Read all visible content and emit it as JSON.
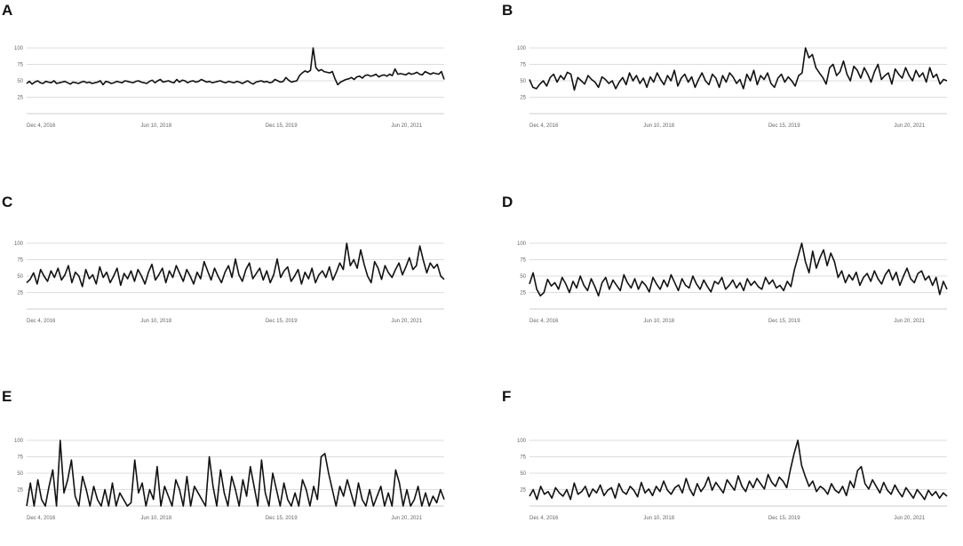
{
  "chart_data": [
    {
      "panel": "A",
      "type": "line",
      "x_ticks": [
        "Dec 4, 2016",
        "Jun 10, 2018",
        "Dec 15, 2019",
        "Jun 20, 2021"
      ],
      "y_ticks": [
        25,
        50,
        75,
        100
      ],
      "ylim": [
        0,
        100
      ],
      "values": [
        46,
        49,
        45,
        48,
        50,
        47,
        46,
        49,
        48,
        47,
        50,
        46,
        47,
        48,
        49,
        47,
        45,
        48,
        47,
        46,
        48,
        49,
        47,
        48,
        46,
        47,
        48,
        50,
        44,
        49,
        48,
        46,
        47,
        49,
        48,
        47,
        50,
        49,
        48,
        47,
        49,
        50,
        48,
        47,
        46,
        49,
        51,
        47,
        50,
        52,
        48,
        49,
        50,
        48,
        47,
        52,
        48,
        51,
        50,
        47,
        49,
        50,
        48,
        49,
        52,
        50,
        48,
        49,
        47,
        48,
        49,
        50,
        48,
        47,
        49,
        48,
        47,
        49,
        48,
        46,
        48,
        50,
        47,
        45,
        48,
        49,
        50,
        48,
        49,
        47,
        48,
        52,
        50,
        48,
        49,
        55,
        51,
        48,
        49,
        50,
        58,
        62,
        65,
        63,
        66,
        100,
        70,
        65,
        67,
        64,
        63,
        62,
        64,
        53,
        44,
        48,
        50,
        52,
        53,
        55,
        52,
        56,
        57,
        54,
        58,
        59,
        57,
        58,
        60,
        56,
        58,
        59,
        57,
        60,
        58,
        68,
        60,
        61,
        60,
        59,
        62,
        60,
        61,
        63,
        60,
        59,
        64,
        62,
        60,
        62,
        61,
        60,
        64,
        52
      ]
    },
    {
      "panel": "B",
      "type": "line",
      "x_ticks": [
        "Dec 4, 2016",
        "Jun 10, 2018",
        "Dec 15, 2019",
        "Jun 20, 2021"
      ],
      "y_ticks": [
        25,
        50,
        75,
        100
      ],
      "ylim": [
        0,
        100
      ],
      "values": [
        52,
        40,
        38,
        45,
        50,
        42,
        55,
        60,
        48,
        58,
        52,
        63,
        60,
        36,
        55,
        50,
        45,
        58,
        52,
        48,
        40,
        56,
        52,
        46,
        50,
        38,
        48,
        55,
        44,
        62,
        50,
        58,
        46,
        54,
        40,
        56,
        48,
        62,
        52,
        44,
        58,
        50,
        66,
        42,
        54,
        60,
        48,
        56,
        40,
        52,
        62,
        50,
        44,
        60,
        54,
        40,
        58,
        48,
        62,
        56,
        46,
        52,
        38,
        60,
        50,
        66,
        44,
        58,
        52,
        62,
        46,
        40,
        54,
        60,
        48,
        56,
        50,
        42,
        58,
        62,
        100,
        85,
        90,
        70,
        62,
        55,
        45,
        70,
        75,
        58,
        64,
        80,
        60,
        50,
        72,
        66,
        54,
        70,
        60,
        48,
        64,
        75,
        52,
        58,
        62,
        45,
        68,
        60,
        54,
        70,
        58,
        50,
        66,
        56,
        62,
        48,
        70,
        55,
        60,
        45,
        52,
        50
      ]
    },
    {
      "panel": "C",
      "type": "line",
      "x_ticks": [
        "Dec 4, 2016",
        "Jun 10, 2018",
        "Dec 15, 2019",
        "Jun 20, 2021"
      ],
      "y_ticks": [
        25,
        50,
        75,
        100
      ],
      "ylim": [
        0,
        100
      ],
      "values": [
        40,
        45,
        55,
        38,
        60,
        50,
        42,
        58,
        48,
        62,
        44,
        52,
        66,
        40,
        56,
        50,
        34,
        60,
        46,
        52,
        38,
        64,
        48,
        56,
        40,
        50,
        62,
        36,
        54,
        46,
        58,
        42,
        60,
        50,
        38,
        56,
        68,
        44,
        52,
        62,
        40,
        58,
        48,
        66,
        54,
        42,
        60,
        50,
        38,
        56,
        46,
        72,
        58,
        44,
        62,
        50,
        40,
        56,
        66,
        48,
        76,
        52,
        42,
        60,
        70,
        46,
        54,
        62,
        44,
        58,
        40,
        52,
        76,
        48,
        58,
        64,
        42,
        50,
        60,
        38,
        56,
        46,
        62,
        40,
        52,
        58,
        48,
        64,
        44,
        56,
        70,
        60,
        100,
        66,
        75,
        62,
        90,
        68,
        50,
        40,
        72,
        62,
        45,
        66,
        55,
        48,
        60,
        70,
        52,
        64,
        78,
        60,
        66,
        96,
        74,
        55,
        70,
        62,
        68,
        50,
        45
      ]
    },
    {
      "panel": "D",
      "type": "line",
      "x_ticks": [
        "Dec 4, 2016",
        "Jun 10, 2018",
        "Dec 15, 2019",
        "Jun 20, 2021"
      ],
      "y_ticks": [
        25,
        50,
        75,
        100
      ],
      "ylim": [
        0,
        100
      ],
      "values": [
        38,
        55,
        30,
        20,
        25,
        45,
        35,
        40,
        30,
        48,
        38,
        25,
        42,
        32,
        50,
        36,
        28,
        46,
        34,
        20,
        40,
        48,
        30,
        44,
        36,
        28,
        52,
        40,
        32,
        46,
        30,
        42,
        36,
        26,
        48,
        38,
        30,
        44,
        34,
        52,
        40,
        28,
        46,
        36,
        32,
        50,
        38,
        30,
        44,
        34,
        26,
        42,
        38,
        48,
        30,
        36,
        44,
        32,
        40,
        28,
        46,
        36,
        42,
        34,
        30,
        48,
        38,
        44,
        32,
        36,
        28,
        42,
        34,
        60,
        80,
        100,
        72,
        55,
        88,
        62,
        78,
        90,
        66,
        85,
        72,
        48,
        58,
        40,
        52,
        44,
        56,
        36,
        48,
        54,
        42,
        58,
        46,
        38,
        52,
        60,
        44,
        56,
        36,
        50,
        62,
        46,
        40,
        54,
        58,
        44,
        50,
        36,
        48,
        22,
        42,
        30
      ]
    },
    {
      "panel": "E",
      "type": "line",
      "x_ticks": [
        "Dec 4, 2016",
        "Jun 10, 2018",
        "Dec 15, 2019",
        "Jun 20, 2021"
      ],
      "y_ticks": [
        25,
        50,
        75,
        100
      ],
      "ylim": [
        0,
        100
      ],
      "values": [
        0,
        35,
        0,
        40,
        10,
        0,
        30,
        55,
        0,
        100,
        20,
        40,
        70,
        15,
        0,
        45,
        25,
        0,
        30,
        10,
        0,
        25,
        0,
        35,
        0,
        20,
        10,
        0,
        5,
        70,
        20,
        35,
        0,
        25,
        10,
        60,
        0,
        30,
        15,
        0,
        40,
        25,
        0,
        45,
        0,
        30,
        20,
        10,
        0,
        75,
        30,
        0,
        55,
        20,
        0,
        45,
        25,
        0,
        40,
        15,
        60,
        30,
        0,
        70,
        20,
        0,
        50,
        25,
        0,
        35,
        10,
        0,
        20,
        0,
        40,
        25,
        0,
        30,
        10,
        75,
        80,
        50,
        25,
        0,
        30,
        15,
        40,
        20,
        0,
        35,
        10,
        0,
        25,
        0,
        15,
        30,
        0,
        20,
        0,
        55,
        35,
        0,
        25,
        0,
        10,
        30,
        0,
        20,
        0,
        15,
        5,
        25,
        10
      ]
    },
    {
      "panel": "F",
      "type": "line",
      "x_ticks": [
        "Dec 4, 2016",
        "Jun 10, 2018",
        "Dec 15, 2019",
        "Jun 20, 2021"
      ],
      "y_ticks": [
        25,
        50,
        75,
        100
      ],
      "ylim": [
        0,
        100
      ],
      "values": [
        15,
        25,
        10,
        30,
        18,
        22,
        12,
        28,
        20,
        15,
        25,
        10,
        35,
        18,
        22,
        30,
        14,
        26,
        20,
        32,
        16,
        24,
        28,
        12,
        34,
        22,
        18,
        30,
        24,
        14,
        36,
        20,
        26,
        16,
        30,
        22,
        38,
        24,
        18,
        28,
        32,
        20,
        42,
        26,
        16,
        34,
        22,
        30,
        44,
        24,
        36,
        28,
        20,
        40,
        32,
        24,
        46,
        30,
        22,
        38,
        28,
        42,
        34,
        26,
        48,
        36,
        30,
        44,
        38,
        28,
        56,
        80,
        100,
        62,
        45,
        30,
        38,
        22,
        30,
        26,
        18,
        34,
        24,
        20,
        30,
        16,
        38,
        28,
        54,
        60,
        34,
        26,
        40,
        30,
        20,
        36,
        24,
        18,
        32,
        22,
        14,
        28,
        20,
        12,
        25,
        18,
        10,
        24,
        16,
        22,
        12,
        20,
        15
      ]
    }
  ],
  "panels": [
    {
      "label": "A"
    },
    {
      "label": "B"
    },
    {
      "label": "C"
    },
    {
      "label": "D"
    },
    {
      "label": "E"
    },
    {
      "label": "F"
    }
  ]
}
